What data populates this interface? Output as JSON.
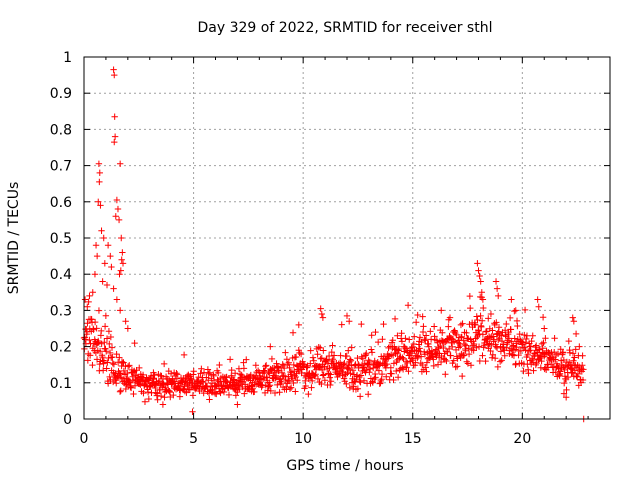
{
  "chart_data": {
    "type": "scatter",
    "title": "Day 329 of 2022, SRMTID for receiver sthl",
    "xlabel": "GPS time / hours",
    "ylabel": "SRMTID / TECUs",
    "xlim": [
      0,
      24
    ],
    "ylim": [
      0,
      1
    ],
    "grid": true,
    "marker": "+",
    "color": "#ff0000",
    "x_ticks": [
      0,
      5,
      10,
      15,
      20
    ],
    "y_ticks": [
      0,
      0.1,
      0.2,
      0.3,
      0.4,
      0.5,
      0.6,
      0.7,
      0.8,
      0.9,
      1
    ],
    "x_tick_labels": [
      "0",
      "5",
      "10",
      "15",
      "20"
    ],
    "y_tick_labels": [
      "0",
      "0.1",
      "0.2",
      "0.3",
      "0.4",
      "0.5",
      "0.6",
      "0.7",
      "0.8",
      "0.9",
      "1"
    ],
    "trend": [
      [
        0.0,
        0.24
      ],
      [
        0.3,
        0.22
      ],
      [
        0.6,
        0.2
      ],
      [
        1.0,
        0.17
      ],
      [
        1.5,
        0.13
      ],
      [
        2.0,
        0.11
      ],
      [
        3.0,
        0.1
      ],
      [
        4.0,
        0.09
      ],
      [
        5.0,
        0.1
      ],
      [
        6.0,
        0.095
      ],
      [
        7.0,
        0.095
      ],
      [
        8.0,
        0.11
      ],
      [
        9.0,
        0.12
      ],
      [
        10.0,
        0.13
      ],
      [
        11.0,
        0.15
      ],
      [
        12.0,
        0.14
      ],
      [
        13.0,
        0.14
      ],
      [
        14.0,
        0.16
      ],
      [
        15.0,
        0.17
      ],
      [
        16.0,
        0.2
      ],
      [
        17.0,
        0.19
      ],
      [
        18.0,
        0.23
      ],
      [
        19.0,
        0.22
      ],
      [
        20.0,
        0.19
      ],
      [
        21.0,
        0.17
      ],
      [
        22.0,
        0.14
      ],
      [
        22.5,
        0.13
      ],
      [
        22.8,
        0.12
      ]
    ],
    "spread": [
      [
        0.0,
        0.08
      ],
      [
        1.0,
        0.07
      ],
      [
        2.0,
        0.04
      ],
      [
        5.0,
        0.035
      ],
      [
        8.0,
        0.04
      ],
      [
        11.0,
        0.05
      ],
      [
        14.0,
        0.06
      ],
      [
        16.0,
        0.06
      ],
      [
        18.0,
        0.07
      ],
      [
        20.0,
        0.06
      ],
      [
        22.0,
        0.05
      ],
      [
        22.8,
        0.05
      ]
    ],
    "notable_points": [
      {
        "x": 1.35,
        "y": 0.965
      },
      {
        "x": 1.38,
        "y": 0.95
      },
      {
        "x": 1.4,
        "y": 0.835
      },
      {
        "x": 1.42,
        "y": 0.78
      },
      {
        "x": 1.38,
        "y": 0.765
      },
      {
        "x": 1.65,
        "y": 0.705
      },
      {
        "x": 0.68,
        "y": 0.705
      },
      {
        "x": 0.72,
        "y": 0.68
      },
      {
        "x": 0.7,
        "y": 0.655
      },
      {
        "x": 0.65,
        "y": 0.6
      },
      {
        "x": 0.75,
        "y": 0.59
      },
      {
        "x": 1.5,
        "y": 0.605
      },
      {
        "x": 1.55,
        "y": 0.58
      },
      {
        "x": 1.45,
        "y": 0.56
      },
      {
        "x": 1.6,
        "y": 0.55
      },
      {
        "x": 1.7,
        "y": 0.5
      },
      {
        "x": 1.75,
        "y": 0.46
      },
      {
        "x": 1.72,
        "y": 0.44
      },
      {
        "x": 1.78,
        "y": 0.43
      },
      {
        "x": 1.68,
        "y": 0.41
      },
      {
        "x": 1.62,
        "y": 0.4
      },
      {
        "x": 0.8,
        "y": 0.52
      },
      {
        "x": 0.9,
        "y": 0.5
      },
      {
        "x": 1.1,
        "y": 0.48
      },
      {
        "x": 1.2,
        "y": 0.45
      },
      {
        "x": 0.55,
        "y": 0.48
      },
      {
        "x": 0.6,
        "y": 0.45
      },
      {
        "x": 0.95,
        "y": 0.43
      },
      {
        "x": 1.25,
        "y": 0.42
      },
      {
        "x": 0.5,
        "y": 0.4
      },
      {
        "x": 0.85,
        "y": 0.38
      },
      {
        "x": 1.05,
        "y": 0.37
      },
      {
        "x": 1.35,
        "y": 0.36
      },
      {
        "x": 0.4,
        "y": 0.35
      },
      {
        "x": 0.25,
        "y": 0.34
      },
      {
        "x": 1.5,
        "y": 0.33
      },
      {
        "x": 0.05,
        "y": 0.33
      },
      {
        "x": 0.15,
        "y": 0.31
      },
      {
        "x": 1.65,
        "y": 0.3
      },
      {
        "x": 1.9,
        "y": 0.27
      },
      {
        "x": 2.0,
        "y": 0.25
      },
      {
        "x": 10.8,
        "y": 0.305
      },
      {
        "x": 10.85,
        "y": 0.29
      },
      {
        "x": 10.9,
        "y": 0.28
      },
      {
        "x": 12.0,
        "y": 0.285
      },
      {
        "x": 12.1,
        "y": 0.27
      },
      {
        "x": 9.8,
        "y": 0.26
      },
      {
        "x": 8.5,
        "y": 0.2
      },
      {
        "x": 13.3,
        "y": 0.24
      },
      {
        "x": 14.3,
        "y": 0.23
      },
      {
        "x": 16.3,
        "y": 0.3
      },
      {
        "x": 16.7,
        "y": 0.28
      },
      {
        "x": 17.2,
        "y": 0.26
      },
      {
        "x": 17.95,
        "y": 0.43
      },
      {
        "x": 18.0,
        "y": 0.41
      },
      {
        "x": 18.05,
        "y": 0.395
      },
      {
        "x": 18.1,
        "y": 0.38
      },
      {
        "x": 18.15,
        "y": 0.35
      },
      {
        "x": 18.2,
        "y": 0.33
      },
      {
        "x": 18.8,
        "y": 0.38
      },
      {
        "x": 18.85,
        "y": 0.36
      },
      {
        "x": 18.9,
        "y": 0.34
      },
      {
        "x": 19.5,
        "y": 0.33
      },
      {
        "x": 19.7,
        "y": 0.3
      },
      {
        "x": 20.7,
        "y": 0.33
      },
      {
        "x": 20.75,
        "y": 0.31
      },
      {
        "x": 21.0,
        "y": 0.25
      },
      {
        "x": 22.3,
        "y": 0.28
      },
      {
        "x": 22.35,
        "y": 0.27
      },
      {
        "x": 22.6,
        "y": 0.2
      },
      {
        "x": 22.8,
        "y": 0.0
      },
      {
        "x": 21.9,
        "y": 0.07
      },
      {
        "x": 22.0,
        "y": 0.06
      },
      {
        "x": 4.95,
        "y": 0.02
      },
      {
        "x": 3.6,
        "y": 0.04
      },
      {
        "x": 7.0,
        "y": 0.04
      }
    ],
    "gaps": [
      [
        23.0,
        24.0
      ]
    ]
  }
}
